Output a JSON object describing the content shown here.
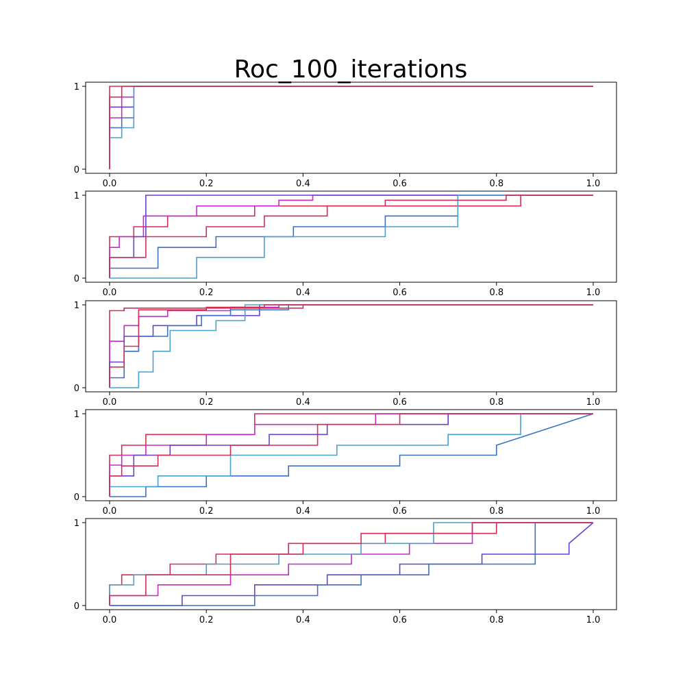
{
  "figure": {
    "title": "Roc_100_iterations"
  },
  "style": {
    "series_colors": [
      "#d62b52",
      "#c42ac7",
      "#6a3fd0",
      "#3b6fc4",
      "#4aa0cc"
    ],
    "frame_color": "#000000"
  },
  "chart_data": [
    {
      "type": "line",
      "step": "post",
      "title": "",
      "xlim": [
        0,
        1
      ],
      "ylim": [
        0,
        1
      ],
      "xticks": [
        "0.0",
        "0.2",
        "0.4",
        "0.6",
        "0.8",
        "1.0"
      ],
      "yticks": [
        "0",
        "1"
      ],
      "grid": false,
      "series": [
        {
          "x": [
            0,
            0,
            0.025,
            0.025,
            1.0
          ],
          "y": [
            0,
            1,
            1,
            1,
            1
          ]
        },
        {
          "x": [
            0,
            0,
            0.025,
            0.025,
            0.05,
            0.05,
            1.0
          ],
          "y": [
            0,
            0.62,
            0.62,
            0.87,
            0.87,
            1,
            1
          ]
        },
        {
          "x": [
            0,
            0,
            0.05,
            0.05,
            1.0
          ],
          "y": [
            0,
            0.75,
            0.75,
            1,
            1
          ]
        },
        {
          "x": [
            0,
            0,
            0.025,
            0.025,
            0.05,
            0.05,
            1.0
          ],
          "y": [
            0,
            0.5,
            0.5,
            0.62,
            0.62,
            1,
            1
          ]
        },
        {
          "x": [
            0,
            0,
            0.025,
            0.025,
            0.05,
            0.05,
            1.0
          ],
          "y": [
            0,
            0.38,
            0.38,
            0.5,
            0.5,
            1,
            1
          ]
        },
        {
          "x": [
            0,
            0,
            0.025,
            0.025,
            1.0
          ],
          "y": [
            0,
            0.87,
            0.87,
            1,
            1
          ]
        }
      ]
    },
    {
      "type": "line",
      "step": "post",
      "title": "",
      "xlim": [
        0,
        1
      ],
      "ylim": [
        0,
        1
      ],
      "xticks": [
        "0.0",
        "0.2",
        "0.4",
        "0.6",
        "0.8",
        "1.0"
      ],
      "yticks": [
        "0",
        "1"
      ],
      "grid": false,
      "series": [
        {
          "x": [
            0,
            0,
            0.05,
            0.05,
            0.12,
            0.12,
            0.3,
            0.3,
            0.85,
            0.85,
            1.0
          ],
          "y": [
            0,
            0.5,
            0.5,
            0.62,
            0.62,
            0.75,
            0.75,
            0.87,
            0.87,
            1,
            1
          ]
        },
        {
          "x": [
            0,
            0,
            0.02,
            0.02,
            0.07,
            0.07,
            0.18,
            0.18,
            0.35,
            0.35,
            0.42,
            0.42,
            1.0
          ],
          "y": [
            0,
            0.37,
            0.37,
            0.5,
            0.5,
            0.75,
            0.75,
            0.87,
            0.87,
            0.94,
            0.94,
            1,
            1
          ]
        },
        {
          "x": [
            0,
            0,
            0.05,
            0.05,
            0.075,
            0.075,
            0.25,
            0.25,
            0.45,
            0.45,
            0.57,
            0.57,
            0.75,
            0.75,
            1.0
          ],
          "y": [
            0,
            0.25,
            0.25,
            0.5,
            0.5,
            1,
            1,
            1,
            1,
            1,
            1,
            1,
            1,
            1,
            1
          ]
        },
        {
          "x": [
            0,
            0,
            0.1,
            0.1,
            0.22,
            0.22,
            0.38,
            0.38,
            0.57,
            0.57,
            0.72,
            0.72,
            1.0
          ],
          "y": [
            0,
            0.12,
            0.12,
            0.37,
            0.37,
            0.5,
            0.5,
            0.62,
            0.62,
            0.75,
            0.75,
            1,
            1
          ]
        },
        {
          "x": [
            0,
            0,
            0.18,
            0.18,
            0.32,
            0.32,
            0.57,
            0.57,
            0.72,
            0.72,
            1.0
          ],
          "y": [
            0,
            0.0,
            0.0,
            0.25,
            0.25,
            0.5,
            0.5,
            0.62,
            0.62,
            1,
            1
          ]
        },
        {
          "x": [
            0,
            0,
            0.075,
            0.075,
            0.2,
            0.2,
            0.32,
            0.32,
            0.45,
            0.45,
            0.57,
            0.57,
            0.82,
            0.82,
            1.0
          ],
          "y": [
            0,
            0.25,
            0.25,
            0.5,
            0.5,
            0.62,
            0.62,
            0.75,
            0.75,
            0.87,
            0.87,
            0.94,
            0.94,
            1,
            1
          ]
        }
      ]
    },
    {
      "type": "line",
      "step": "post",
      "title": "",
      "xlim": [
        0,
        1
      ],
      "ylim": [
        0,
        1
      ],
      "xticks": [
        "0.0",
        "0.2",
        "0.4",
        "0.6",
        "0.8",
        "1.0"
      ],
      "yticks": [
        "0",
        "1"
      ],
      "grid": false,
      "series": [
        {
          "x": [
            0,
            0,
            0.03,
            0.03,
            0.4,
            0.4,
            1.0
          ],
          "y": [
            0,
            0.93,
            0.93,
            0.96,
            0.96,
            1,
            1
          ]
        },
        {
          "x": [
            0,
            0,
            0.03,
            0.03,
            0.06,
            0.06,
            0.12,
            0.12,
            0.25,
            0.25,
            0.35,
            0.35,
            1.0
          ],
          "y": [
            0,
            0.56,
            0.56,
            0.75,
            0.75,
            0.86,
            0.86,
            0.93,
            0.93,
            0.97,
            0.97,
            1,
            1
          ]
        },
        {
          "x": [
            0,
            0,
            0.03,
            0.03,
            0.09,
            0.09,
            0.18,
            0.18,
            0.31,
            0.31,
            1.0
          ],
          "y": [
            0,
            0.31,
            0.31,
            0.62,
            0.62,
            0.75,
            0.75,
            0.87,
            0.87,
            1,
            1
          ]
        },
        {
          "x": [
            0,
            0,
            0.03,
            0.03,
            0.06,
            0.06,
            0.12,
            0.12,
            0.19,
            0.19,
            0.25,
            0.25,
            0.37,
            0.37,
            1.0
          ],
          "y": [
            0,
            0.12,
            0.12,
            0.44,
            0.44,
            0.62,
            0.62,
            0.75,
            0.75,
            0.87,
            0.87,
            0.94,
            0.94,
            1,
            1
          ]
        },
        {
          "x": [
            0,
            0,
            0.06,
            0.06,
            0.09,
            0.09,
            0.125,
            0.125,
            0.22,
            0.22,
            0.28,
            0.28,
            1.0
          ],
          "y": [
            0,
            0.0,
            0.0,
            0.19,
            0.19,
            0.44,
            0.44,
            0.69,
            0.69,
            0.81,
            0.81,
            1,
            1
          ]
        },
        {
          "x": [
            0,
            0,
            0.03,
            0.03,
            0.06,
            0.06,
            0.2,
            0.2,
            0.32,
            0.32,
            1.0
          ],
          "y": [
            0,
            0.25,
            0.25,
            0.5,
            0.5,
            0.94,
            0.94,
            0.97,
            0.97,
            1,
            1
          ]
        }
      ]
    },
    {
      "type": "line",
      "step": "post",
      "title": "",
      "xlim": [
        0,
        1
      ],
      "ylim": [
        0,
        1
      ],
      "xticks": [
        "0.0",
        "0.2",
        "0.4",
        "0.6",
        "0.8",
        "1.0"
      ],
      "yticks": [
        "0",
        "1"
      ],
      "grid": false,
      "series": [
        {
          "x": [
            0,
            0,
            0.025,
            0.025,
            0.075,
            0.075,
            0.2,
            0.2,
            0.3,
            0.3,
            1.0
          ],
          "y": [
            0,
            0.5,
            0.5,
            0.62,
            0.62,
            0.75,
            0.75,
            0.75,
            0.75,
            1,
            1
          ]
        },
        {
          "x": [
            0,
            0,
            0.025,
            0.025,
            0.075,
            0.075,
            0.2,
            0.2,
            0.3,
            0.3,
            0.55,
            0.55,
            1.0
          ],
          "y": [
            0,
            0.38,
            0.38,
            0.5,
            0.5,
            0.62,
            0.62,
            0.75,
            0.75,
            0.87,
            0.87,
            1,
            1
          ]
        },
        {
          "x": [
            0,
            0,
            0.05,
            0.05,
            0.125,
            0.125,
            0.33,
            0.33,
            0.45,
            0.45,
            0.7,
            0.7,
            1.0
          ],
          "y": [
            0,
            0.25,
            0.25,
            0.5,
            0.5,
            0.62,
            0.62,
            0.75,
            0.75,
            0.87,
            0.87,
            1,
            1
          ]
        },
        {
          "x": [
            0,
            0,
            0.075,
            0.075,
            0.2,
            0.2,
            0.37,
            0.37,
            0.6,
            0.6,
            0.8,
            0.8,
            1.0
          ],
          "y": [
            0,
            0.0,
            0.0,
            0.12,
            0.12,
            0.25,
            0.25,
            0.37,
            0.37,
            0.5,
            0.5,
            0.62,
            1
          ]
        },
        {
          "x": [
            0,
            0,
            0.1,
            0.1,
            0.25,
            0.25,
            0.47,
            0.47,
            0.7,
            0.7,
            0.85,
            0.85,
            1.0
          ],
          "y": [
            0,
            0.12,
            0.12,
            0.25,
            0.25,
            0.5,
            0.5,
            0.62,
            0.62,
            0.75,
            0.75,
            1,
            1
          ]
        },
        {
          "x": [
            0,
            0,
            0.025,
            0.025,
            0.1,
            0.1,
            0.25,
            0.25,
            0.43,
            0.43,
            0.6,
            0.6,
            1.0
          ],
          "y": [
            0,
            0.25,
            0.25,
            0.37,
            0.37,
            0.5,
            0.5,
            0.62,
            0.62,
            0.87,
            0.87,
            1,
            1
          ]
        }
      ]
    },
    {
      "type": "line",
      "step": "post",
      "title": "",
      "xlim": [
        0,
        1
      ],
      "ylim": [
        0,
        1
      ],
      "xticks": [
        "0.0",
        "0.2",
        "0.4",
        "0.6",
        "0.8",
        "1.0"
      ],
      "yticks": [
        "0",
        "1"
      ],
      "grid": false,
      "series": [
        {
          "x": [
            0,
            0,
            0.025,
            0.025,
            0.125,
            0.125,
            0.22,
            0.22,
            0.37,
            0.37,
            0.57,
            0.57,
            0.8,
            0.8,
            1.0
          ],
          "y": [
            0,
            0.25,
            0.25,
            0.37,
            0.37,
            0.5,
            0.5,
            0.62,
            0.62,
            0.75,
            0.75,
            0.87,
            0.87,
            1,
            1
          ]
        },
        {
          "x": [
            0,
            0,
            0.1,
            0.1,
            0.25,
            0.25,
            0.37,
            0.37,
            0.5,
            0.5,
            0.62,
            0.62,
            0.75,
            0.75,
            1.0
          ],
          "y": [
            0,
            0.12,
            0.12,
            0.25,
            0.25,
            0.37,
            0.37,
            0.5,
            0.5,
            0.62,
            0.62,
            0.75,
            0.75,
            1,
            1
          ]
        },
        {
          "x": [
            0,
            0,
            0.15,
            0.15,
            0.3,
            0.3,
            0.45,
            0.45,
            0.6,
            0.6,
            0.77,
            0.77,
            0.95,
            0.95,
            1.0
          ],
          "y": [
            0,
            0.0,
            0.0,
            0.12,
            0.12,
            0.25,
            0.25,
            0.37,
            0.37,
            0.5,
            0.5,
            0.62,
            0.62,
            0.75,
            1
          ]
        },
        {
          "x": [
            0,
            0,
            0.3,
            0.3,
            0.43,
            0.43,
            0.52,
            0.52,
            0.66,
            0.66,
            0.88,
            0.88,
            1.0
          ],
          "y": [
            0,
            0.0,
            0.0,
            0.12,
            0.12,
            0.25,
            0.25,
            0.37,
            0.37,
            0.5,
            0.5,
            1,
            1
          ]
        },
        {
          "x": [
            0,
            0,
            0.05,
            0.05,
            0.2,
            0.2,
            0.35,
            0.35,
            0.52,
            0.52,
            0.67,
            0.67,
            1.0
          ],
          "y": [
            0,
            0.25,
            0.25,
            0.37,
            0.37,
            0.5,
            0.5,
            0.62,
            0.62,
            0.75,
            0.75,
            1,
            1
          ]
        },
        {
          "x": [
            0,
            0,
            0.075,
            0.075,
            0.25,
            0.25,
            0.4,
            0.4,
            0.52,
            0.52,
            0.75,
            0.75,
            1.0
          ],
          "y": [
            0,
            0.12,
            0.12,
            0.37,
            0.37,
            0.62,
            0.62,
            0.75,
            0.75,
            0.87,
            0.87,
            1,
            1
          ]
        }
      ]
    }
  ]
}
